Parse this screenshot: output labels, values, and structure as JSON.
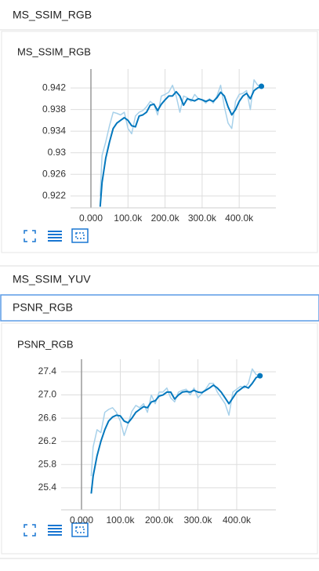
{
  "sections": [
    {
      "title": "MS_SSIM_RGB"
    },
    {
      "title": "MS_SSIM_YUV"
    },
    {
      "title": "PSNR_RGB"
    }
  ],
  "chart_data": [
    {
      "type": "line",
      "title": "MS_SSIM_RGB",
      "x": [
        25000,
        30000,
        40000,
        50000,
        60000,
        70000,
        80000,
        90000,
        100000,
        110000,
        120000,
        130000,
        140000,
        150000,
        160000,
        170000,
        180000,
        190000,
        200000,
        210000,
        220000,
        230000,
        240000,
        250000,
        260000,
        270000,
        280000,
        290000,
        300000,
        310000,
        320000,
        330000,
        340000,
        350000,
        360000,
        370000,
        380000,
        390000,
        400000,
        410000,
        420000,
        430000,
        440000,
        450000,
        460000
      ],
      "series": [
        {
          "color": "#a8d1ea",
          "values": [
            0.922,
            0.9295,
            0.932,
            0.935,
            0.9375,
            0.9373,
            0.937,
            0.9375,
            0.9345,
            0.9335,
            0.9368,
            0.9375,
            0.9378,
            0.9385,
            0.9395,
            0.939,
            0.937,
            0.9405,
            0.9408,
            0.9412,
            0.9425,
            0.9405,
            0.9375,
            0.9405,
            0.9402,
            0.9395,
            0.9408,
            0.94,
            0.9398,
            0.9392,
            0.94,
            0.9392,
            0.9405,
            0.9425,
            0.9385,
            0.9355,
            0.9345,
            0.9395,
            0.9408,
            0.941,
            0.9415,
            0.938,
            0.9435,
            0.9425,
            0.9425
          ]
        },
        {
          "color": "#0277bd",
          "values": [
            0.92,
            0.9245,
            0.929,
            0.932,
            0.9345,
            0.9355,
            0.936,
            0.9365,
            0.936,
            0.935,
            0.9348,
            0.9368,
            0.937,
            0.9375,
            0.9388,
            0.939,
            0.9378,
            0.939,
            0.9398,
            0.9405,
            0.9405,
            0.9413,
            0.9405,
            0.9388,
            0.94,
            0.9398,
            0.9396,
            0.94,
            0.9398,
            0.9395,
            0.9398,
            0.9395,
            0.9402,
            0.9412,
            0.9405,
            0.9385,
            0.937,
            0.938,
            0.9395,
            0.9405,
            0.941,
            0.94,
            0.9415,
            0.942,
            0.9423
          ]
        }
      ],
      "xlim": [
        -55000,
        499000
      ],
      "xticks": [
        {
          "value": 0,
          "label": "0.000"
        },
        {
          "value": 100000,
          "label": "100.0k"
        },
        {
          "value": 200000,
          "label": "200.0k"
        },
        {
          "value": 300000,
          "label": "300.0k"
        },
        {
          "value": 400000,
          "label": "400.0k"
        }
      ],
      "ylim": [
        0.9198,
        0.9455
      ],
      "yticks": [
        0.922,
        0.926,
        0.93,
        0.934,
        0.938,
        0.942
      ],
      "grid": true
    },
    {
      "type": "line",
      "title": "PSNR_RGB",
      "x": [
        25000,
        30000,
        40000,
        50000,
        60000,
        70000,
        80000,
        90000,
        100000,
        110000,
        120000,
        130000,
        140000,
        150000,
        160000,
        170000,
        180000,
        190000,
        200000,
        210000,
        220000,
        230000,
        240000,
        250000,
        260000,
        270000,
        280000,
        290000,
        300000,
        310000,
        320000,
        330000,
        340000,
        350000,
        360000,
        370000,
        380000,
        390000,
        400000,
        410000,
        420000,
        430000,
        440000,
        450000,
        460000
      ],
      "series": [
        {
          "color": "#a8d1ea",
          "values": [
            25.6,
            26.1,
            26.4,
            26.35,
            26.7,
            26.75,
            26.78,
            26.7,
            26.55,
            26.3,
            26.5,
            26.72,
            26.82,
            26.78,
            26.85,
            26.7,
            27.0,
            26.85,
            27.05,
            27.05,
            27.12,
            26.95,
            26.88,
            27.05,
            27.08,
            27.1,
            27.0,
            27.12,
            26.95,
            27.02,
            27.1,
            27.2,
            27.2,
            27.05,
            26.95,
            26.85,
            26.65,
            27.05,
            27.1,
            27.15,
            27.12,
            27.2,
            27.45,
            27.35,
            27.33
          ]
        },
        {
          "color": "#0277bd",
          "values": [
            25.3,
            25.6,
            25.95,
            26.2,
            26.4,
            26.55,
            26.62,
            26.65,
            26.64,
            26.55,
            26.52,
            26.6,
            26.7,
            26.75,
            26.8,
            26.78,
            26.88,
            26.9,
            26.98,
            27.0,
            27.05,
            27.05,
            26.93,
            27.0,
            27.05,
            27.06,
            27.05,
            27.08,
            27.05,
            27.04,
            27.08,
            27.12,
            27.17,
            27.12,
            27.05,
            26.95,
            26.85,
            26.95,
            27.05,
            27.1,
            27.15,
            27.12,
            27.2,
            27.3,
            27.33
          ]
        }
      ],
      "xlim": [
        -52500,
        501000
      ],
      "xticks": [
        {
          "value": 0,
          "label": "0.000"
        },
        {
          "value": 100000,
          "label": "100.0k"
        },
        {
          "value": 200000,
          "label": "200.0k"
        },
        {
          "value": 300000,
          "label": "300.0k"
        },
        {
          "value": 400000,
          "label": "400.0k"
        }
      ],
      "ylim": [
        25.02,
        27.616
      ],
      "yticks": [
        25.4,
        25.8,
        26.2,
        26.6,
        {
          "value": 27,
          "label": "27.0"
        },
        27.4
      ],
      "grid": true
    }
  ]
}
